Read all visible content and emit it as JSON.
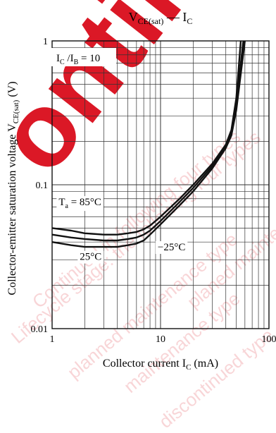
{
  "chart_data": {
    "type": "line",
    "title_main": "V",
    "title_sub": "CE(sat)",
    "title_sep": " — ",
    "title_tail_main": "I",
    "title_tail_sub": "C",
    "xlabel": "Collector current  I",
    "xlabel_sub": "C",
    "xlabel_unit": "  (mA)",
    "ylabel": "Collector-emitter saturation voltage  V",
    "ylabel_sub": "CE(sat)",
    "ylabel_unit": "  (V)",
    "x_scale": "log",
    "y_scale": "log",
    "xlim": [
      1,
      100
    ],
    "ylim": [
      0.01,
      1
    ],
    "x_ticks": [
      1,
      10,
      100
    ],
    "x_tick_labels": [
      "1",
      "10",
      "100"
    ],
    "y_ticks": [
      0.01,
      0.1,
      1
    ],
    "y_tick_labels": [
      "0.01",
      "0.1",
      "1"
    ],
    "grid": true,
    "condition_main": "I",
    "condition_sub1": "C",
    "condition_mid": " /I",
    "condition_sub2": "B",
    "condition_tail": " = 10",
    "series": [
      {
        "name": "T_a = 85°C",
        "x": [
          1,
          1.5,
          2,
          3,
          4,
          5,
          6,
          7,
          8,
          10,
          15,
          20,
          30,
          40,
          45,
          50,
          55
        ],
        "y": [
          0.05,
          0.048,
          0.046,
          0.045,
          0.045,
          0.046,
          0.047,
          0.049,
          0.052,
          0.06,
          0.08,
          0.1,
          0.14,
          0.19,
          0.24,
          0.4,
          1.0
        ]
      },
      {
        "name": "25°C",
        "x": [
          1,
          1.5,
          2,
          3,
          4,
          5,
          6,
          7,
          8,
          10,
          15,
          20,
          30,
          40,
          45,
          50,
          58
        ],
        "y": [
          0.045,
          0.043,
          0.042,
          0.041,
          0.041,
          0.042,
          0.043,
          0.045,
          0.048,
          0.056,
          0.076,
          0.095,
          0.135,
          0.185,
          0.23,
          0.37,
          1.0
        ]
      },
      {
        "name": "−25°C",
        "x": [
          1,
          1.5,
          2,
          3,
          4,
          5,
          6,
          7,
          8,
          10,
          15,
          20,
          30,
          40,
          45,
          50,
          60
        ],
        "y": [
          0.04,
          0.038,
          0.037,
          0.037,
          0.037,
          0.038,
          0.039,
          0.041,
          0.045,
          0.053,
          0.072,
          0.09,
          0.13,
          0.18,
          0.22,
          0.33,
          1.0
        ]
      }
    ],
    "annotations": [
      {
        "main": "T",
        "sub": "a",
        "tail": " = 85°C",
        "x": 1.15,
        "y": 0.072
      },
      {
        "main": "25°C",
        "x": 1.8,
        "y": 0.03
      },
      {
        "main": "−25°C",
        "x": 9.4,
        "y": 0.035
      }
    ],
    "watermark_big": "ontinu",
    "watermark_lines": [
      "Lifecycle stage: the following four types",
      "planned maintenance type",
      "maintenance type",
      "discontinued type",
      "Continued in following four types",
      "planed maintenance type"
    ]
  }
}
